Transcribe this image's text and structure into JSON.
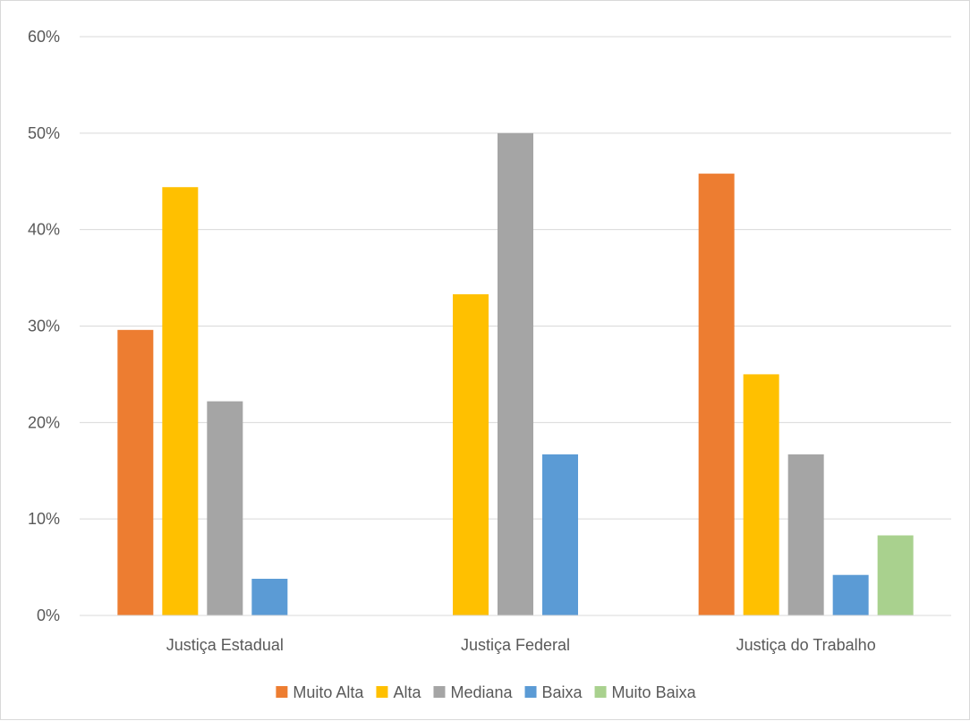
{
  "chart_data": {
    "type": "bar",
    "title": "",
    "xlabel": "",
    "ylabel": "",
    "categories": [
      "Justiça Estadual",
      "Justiça Federal",
      "Justiça do Trabalho"
    ],
    "series": [
      {
        "name": "Muito Alta",
        "color": "#ED7D31",
        "values": [
          0.296,
          0,
          0.458
        ]
      },
      {
        "name": "Alta",
        "color": "#FFC000",
        "values": [
          0.444,
          0.333,
          0.25
        ]
      },
      {
        "name": "Mediana",
        "color": "#A5A5A5",
        "values": [
          0.222,
          0.5,
          0.167
        ]
      },
      {
        "name": "Baixa",
        "color": "#5B9BD5",
        "values": [
          0.038,
          0.167,
          0.042
        ]
      },
      {
        "name": "Muito Baixa",
        "color": "#A9D18E",
        "values": [
          0,
          0,
          0.083
        ]
      }
    ],
    "ylim": [
      0,
      0.6
    ],
    "yticks": [
      {
        "value": 0,
        "label": "0%"
      },
      {
        "value": 0.1,
        "label": "10%"
      },
      {
        "value": 0.2,
        "label": "20%"
      },
      {
        "value": 0.3,
        "label": "30%"
      },
      {
        "value": 0.4,
        "label": "40%"
      },
      {
        "value": 0.5,
        "label": "50%"
      },
      {
        "value": 0.6,
        "label": "60%"
      }
    ],
    "grid": true,
    "legend_position": "bottom"
  }
}
